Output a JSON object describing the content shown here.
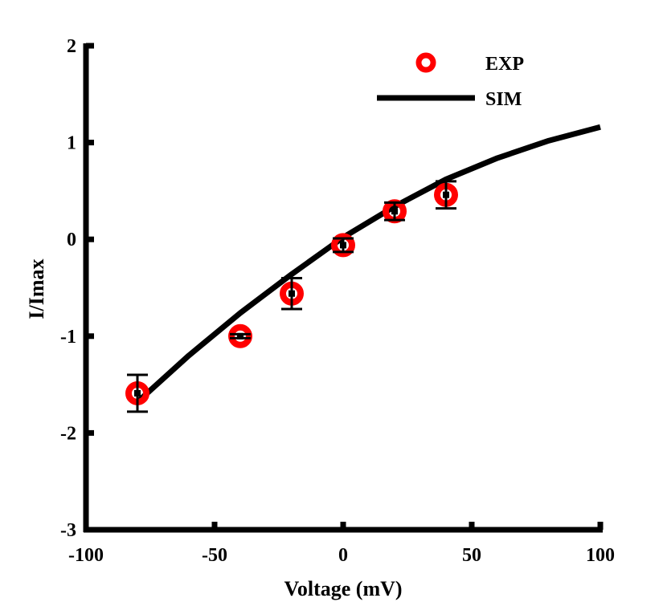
{
  "chart_data": {
    "type": "scatter",
    "xlabel": "Voltage (mV)",
    "ylabel": "I/Imax",
    "xlim": [
      -100,
      100
    ],
    "ylim": [
      -3,
      2
    ],
    "x_ticks": [
      -100,
      -50,
      0,
      50,
      100
    ],
    "y_ticks": [
      -3,
      -2,
      -1,
      0,
      1,
      2
    ],
    "x_tick_labels": [
      "-100",
      "-50",
      "0",
      "50",
      "100"
    ],
    "y_tick_labels": [
      "-3",
      "-2",
      "-1",
      "0",
      "1",
      "2"
    ],
    "grid": false,
    "legend_position": "top-right",
    "series": [
      {
        "name": "EXP",
        "kind": "scatter",
        "marker": "circle",
        "color": "#ff0000",
        "x": [
          -80,
          -40,
          -20,
          0,
          20,
          40
        ],
        "y": [
          -1.59,
          -1.0,
          -0.56,
          -0.06,
          0.29,
          0.46
        ],
        "error": [
          0.19,
          0.02,
          0.16,
          0.07,
          0.09,
          0.14
        ]
      },
      {
        "name": "SIM",
        "kind": "line",
        "color": "#000000",
        "x": [
          -80,
          -60,
          -40,
          -20,
          0,
          20,
          40,
          60,
          80,
          100
        ],
        "y": [
          -1.68,
          -1.2,
          -0.76,
          -0.36,
          0.02,
          0.34,
          0.62,
          0.84,
          1.02,
          1.16
        ]
      }
    ]
  }
}
